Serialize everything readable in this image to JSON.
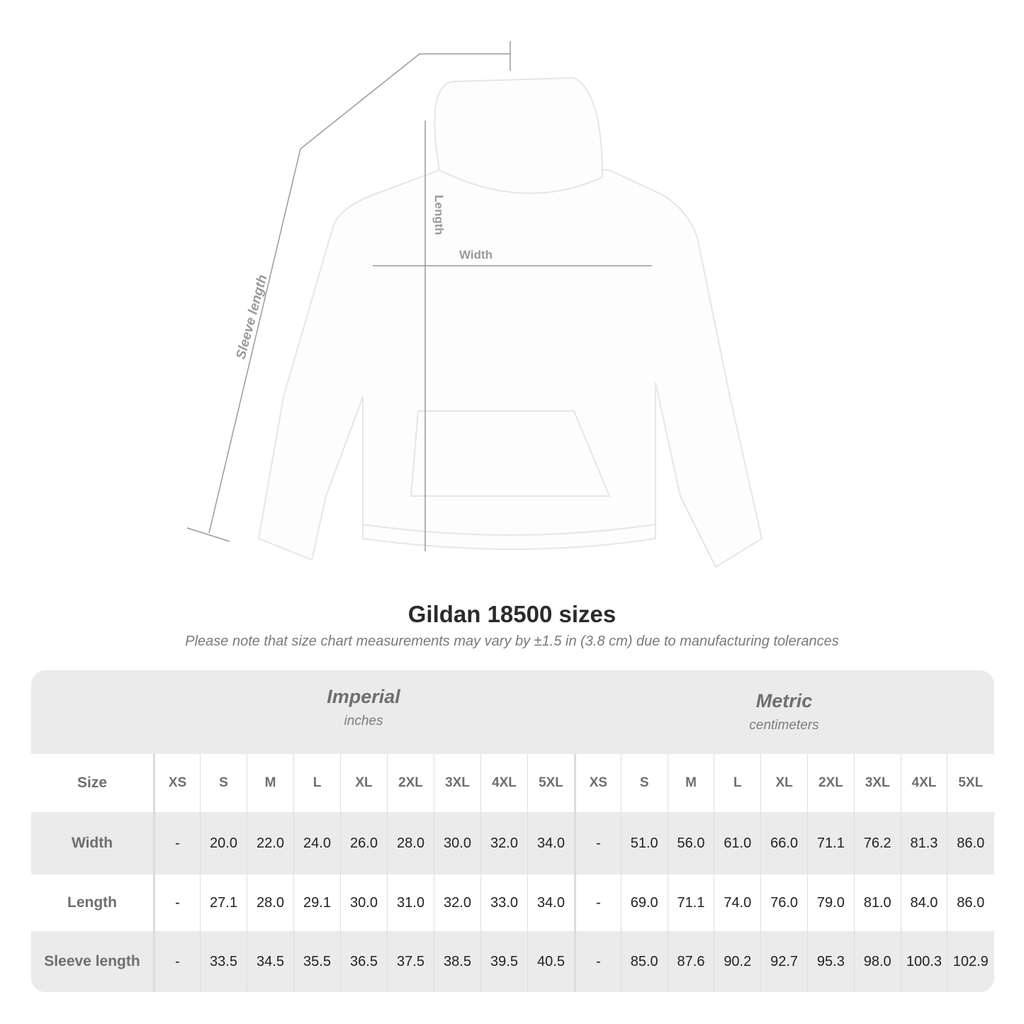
{
  "illustration": {
    "labels": {
      "length": "Length",
      "width": "Width",
      "sleeve": "Sleeve length"
    }
  },
  "title": "Gildan 18500 sizes",
  "note": "Please note that size chart measurements may vary by ±1.5 in (3.8 cm) due to manufacturing tolerances",
  "table": {
    "imperial": {
      "name": "Imperial",
      "unit": "inches"
    },
    "metric": {
      "name": "Metric",
      "unit": "centimeters"
    },
    "size_label": "Size",
    "sizes": [
      "XS",
      "S",
      "M",
      "L",
      "XL",
      "2XL",
      "3XL",
      "4XL",
      "5XL"
    ],
    "rows": [
      {
        "label": "Width",
        "imperial": [
          "-",
          "20.0",
          "22.0",
          "24.0",
          "26.0",
          "28.0",
          "30.0",
          "32.0",
          "34.0"
        ],
        "metric": [
          "-",
          "51.0",
          "56.0",
          "61.0",
          "66.0",
          "71.1",
          "76.2",
          "81.3",
          "86.0"
        ]
      },
      {
        "label": "Length",
        "imperial": [
          "-",
          "27.1",
          "28.0",
          "29.1",
          "30.0",
          "31.0",
          "32.0",
          "33.0",
          "34.0"
        ],
        "metric": [
          "-",
          "69.0",
          "71.1",
          "74.0",
          "76.0",
          "79.0",
          "81.0",
          "84.0",
          "86.0"
        ]
      },
      {
        "label": "Sleeve length",
        "imperial": [
          "-",
          "33.5",
          "34.5",
          "35.5",
          "36.5",
          "37.5",
          "38.5",
          "39.5",
          "40.5"
        ],
        "metric": [
          "-",
          "85.0",
          "87.6",
          "90.2",
          "92.7",
          "95.3",
          "98.0",
          "100.3",
          "102.9"
        ]
      }
    ]
  }
}
